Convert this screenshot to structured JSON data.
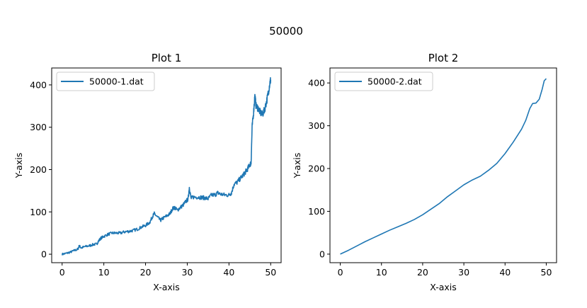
{
  "figure": {
    "suptitle": "50000"
  },
  "chart_data": [
    {
      "type": "line",
      "title": "Plot 1",
      "xlabel": "X-axis",
      "ylabel": "Y-axis",
      "xlim": [
        -2.5,
        52.5
      ],
      "ylim": [
        -20,
        440
      ],
      "xticks": [
        0,
        10,
        20,
        30,
        40,
        50
      ],
      "yticks": [
        0,
        100,
        200,
        300,
        400
      ],
      "legend_position": "upper-left",
      "series": [
        {
          "name": "50000-1.dat",
          "color": "#1f77b4",
          "noisy": true,
          "points": [
            [
              0,
              0
            ],
            [
              1,
              2
            ],
            [
              2,
              5
            ],
            [
              3,
              9
            ],
            [
              3.8,
              12
            ],
            [
              4.1,
              20
            ],
            [
              4.6,
              15
            ],
            [
              5.5,
              18
            ],
            [
              6.5,
              20
            ],
            [
              7.5,
              23
            ],
            [
              8.3,
              24
            ],
            [
              8.8,
              32
            ],
            [
              9.3,
              38
            ],
            [
              10,
              42
            ],
            [
              11,
              47
            ],
            [
              12,
              50
            ],
            [
              13,
              50
            ],
            [
              14,
              50
            ],
            [
              15,
              53
            ],
            [
              16,
              54
            ],
            [
              17,
              56
            ],
            [
              18,
              59
            ],
            [
              19,
              64
            ],
            [
              20,
              68
            ],
            [
              21,
              75
            ],
            [
              21.6,
              88
            ],
            [
              22.1,
              96
            ],
            [
              22.8,
              88
            ],
            [
              23.6,
              80
            ],
            [
              24.2,
              85
            ],
            [
              25,
              90
            ],
            [
              25.8,
              95
            ],
            [
              26.5,
              108
            ],
            [
              27,
              110
            ],
            [
              27.6,
              104
            ],
            [
              28.3,
              110
            ],
            [
              29,
              116
            ],
            [
              29.6,
              124
            ],
            [
              30.2,
              130
            ],
            [
              30.5,
              158
            ],
            [
              30.9,
              132
            ],
            [
              31.5,
              135
            ],
            [
              32.5,
              135
            ],
            [
              33.5,
              134
            ],
            [
              34.2,
              133
            ],
            [
              35,
              131
            ],
            [
              35.8,
              140
            ],
            [
              36.6,
              140
            ],
            [
              37.3,
              145
            ],
            [
              38,
              142
            ],
            [
              39,
              140
            ],
            [
              40,
              140
            ],
            [
              40.6,
              145
            ],
            [
              41.2,
              165
            ],
            [
              42,
              170
            ],
            [
              42.8,
              180
            ],
            [
              43.5,
              188
            ],
            [
              44,
              195
            ],
            [
              44.5,
              202
            ],
            [
              45,
              212
            ],
            [
              45.3,
              215
            ],
            [
              45.55,
              300
            ],
            [
              45.9,
              335
            ],
            [
              46.2,
              375
            ],
            [
              46.5,
              350
            ],
            [
              47,
              345
            ],
            [
              47.5,
              335
            ],
            [
              48,
              330
            ],
            [
              48.5,
              340
            ],
            [
              49,
              360
            ],
            [
              49.4,
              380
            ],
            [
              49.8,
              405
            ],
            [
              50,
              412
            ]
          ]
        }
      ]
    },
    {
      "type": "line",
      "title": "Plot 2",
      "xlabel": "X-axis",
      "ylabel": "Y-axis",
      "xlim": [
        -2.5,
        52.5
      ],
      "ylim": [
        -20,
        435
      ],
      "xticks": [
        0,
        10,
        20,
        30,
        40,
        50
      ],
      "yticks": [
        0,
        100,
        200,
        300,
        400
      ],
      "legend_position": "upper-left",
      "series": [
        {
          "name": "50000-2.dat",
          "color": "#1f77b4",
          "noisy": false,
          "points": [
            [
              0,
              0
            ],
            [
              2,
              9
            ],
            [
              4,
              19
            ],
            [
              6,
              29
            ],
            [
              8,
              38
            ],
            [
              10,
              47
            ],
            [
              12,
              56
            ],
            [
              14,
              64
            ],
            [
              16,
              72
            ],
            [
              18,
              81
            ],
            [
              20,
              92
            ],
            [
              22,
              105
            ],
            [
              24,
              118
            ],
            [
              26,
              134
            ],
            [
              28,
              148
            ],
            [
              30,
              162
            ],
            [
              32,
              173
            ],
            [
              34,
              182
            ],
            [
              36,
              196
            ],
            [
              38,
              212
            ],
            [
              40,
              235
            ],
            [
              42,
              262
            ],
            [
              44,
              292
            ],
            [
              45,
              312
            ],
            [
              46,
              340
            ],
            [
              46.7,
              352
            ],
            [
              47.5,
              353
            ],
            [
              48.3,
              362
            ],
            [
              49,
              385
            ],
            [
              49.5,
              405
            ],
            [
              50,
              410
            ]
          ]
        }
      ]
    }
  ]
}
